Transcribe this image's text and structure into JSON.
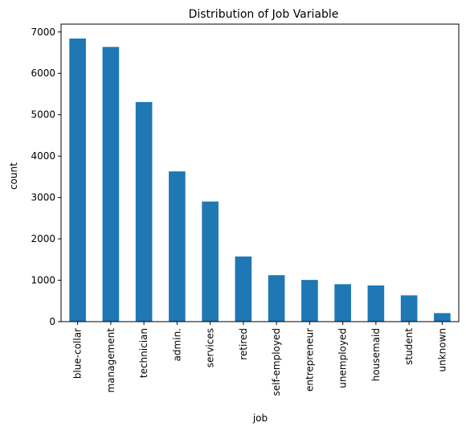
{
  "chart_data": {
    "type": "bar",
    "title": "Distribution of Job Variable",
    "xlabel": "job",
    "ylabel": "count",
    "categories": [
      "blue-collar",
      "management",
      "technician",
      "admin.",
      "services",
      "retired",
      "self-employed",
      "entrepreneur",
      "unemployed",
      "housemaid",
      "student",
      "unknown"
    ],
    "values": [
      6842,
      6639,
      5307,
      3631,
      2903,
      1574,
      1123,
      1008,
      905,
      874,
      635,
      206
    ],
    "ylim": [
      0,
      7190
    ],
    "yticks": [
      0,
      1000,
      2000,
      3000,
      4000,
      5000,
      6000,
      7000
    ],
    "grid": false,
    "color": "#1f77b4"
  }
}
